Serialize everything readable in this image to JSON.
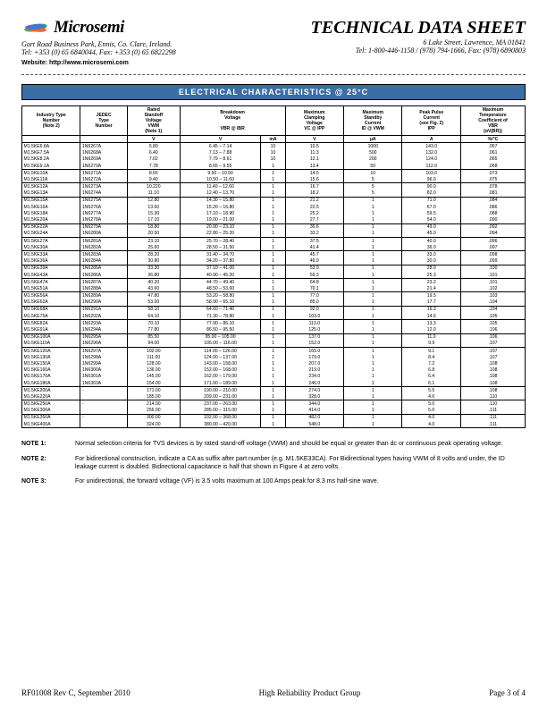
{
  "company": {
    "name": "Microsemi",
    "addr_line1": "Gort Road Business Park, Ennis, Co. Clare, Ireland.",
    "addr_line2": "Tel: +353 (0) 65 6840044, Fax: +353 (0) 65 6822298",
    "website": "Website: http://www.microsemi.com"
  },
  "doc": {
    "title": "TECHNICAL DATA SHEET",
    "addr_line1": "6 Lake Street, Lawrence, MA 01841",
    "addr_line2": "Tel: 1-800-446-1158 / (978) 794-1666, Fax: (978) 6890803",
    "section_bar": "ELECTRICAL CHARACTERISTICS @ 25°C"
  },
  "headers": {
    "c1": "Industry Type\nNumber\n(Note 2)",
    "c2": "JEDEC\nType\nNumber",
    "c3": "Rated\nStandoff\nVoltage\nVWM\n(Note 1)",
    "c4": "Breakdown\nVoltage\n\nVBR  @   IBR",
    "c5": "Maximum\nClamping\nVoltage\nVC @ IPP",
    "c6": "Maximum\nStandby\nCurrent\nID @ VWM",
    "c7": "Peak Pulse\nCurrent\n(see Fig. 2)\nIPP",
    "c8": "Maximum\nTemperature\nCoefficient of\nVBR\n(αV(BR))"
  },
  "units": [
    "",
    "",
    "V",
    "V",
    "mA",
    "V",
    "µA",
    "A",
    "%/°C"
  ],
  "rows": [
    [
      "M1.5KE6.8A",
      "1N6267A",
      "5.80",
      "6.45 – 7.14",
      "10",
      "10.5",
      "1000",
      "143.0",
      ".057",
      0
    ],
    [
      "M1.5KE7.5A",
      "1N6268A",
      "6.40",
      "7.13 – 7.88",
      "10",
      "11.3",
      "500",
      "132.0",
      ".061",
      0
    ],
    [
      "M1.5KE8.2A",
      "1N6269A",
      "7.02",
      "7.79 – 8.61",
      "10",
      "12.1",
      "200",
      "124.0",
      ".065",
      0
    ],
    [
      "M1.5KE9.1A",
      "1N6270A",
      "7.78",
      "8.65 – 9.55",
      "1",
      "13.4",
      "50",
      "112.0",
      ".068",
      0
    ],
    [
      "M1.5KE10A",
      "1N6271A",
      "8.55",
      "9.50 – 10.50",
      "1",
      "14.5",
      "10",
      "103.0",
      ".073",
      1
    ],
    [
      "M1.5KE11A",
      "1N6272A",
      "9.40",
      "10.50 – 11.60",
      "1",
      "15.6",
      "5",
      "96.0",
      ".075",
      0
    ],
    [
      "M1.5KE12A",
      "1N6273A",
      "10.220",
      "11.40 – 12.60",
      "1",
      "16.7",
      "5",
      "90.0",
      ".078",
      1
    ],
    [
      "M1.5KE13A",
      "1N6274A",
      "11.10",
      "12.40 – 13.70",
      "1",
      "18.2",
      "5",
      "82.0",
      ".081",
      0
    ],
    [
      "M1.5KE15A",
      "1N6275A",
      "12.80",
      "14.30 – 15.80",
      "1",
      "21.2",
      "1",
      "71.0",
      ".084",
      1
    ],
    [
      "M1.5KE16A",
      "1N6276A",
      "13.60",
      "15.20 – 16.80",
      "1",
      "22.5",
      "1",
      "67.0",
      ".086",
      0
    ],
    [
      "M1.5KE18A",
      "1N6277A",
      "15.30",
      "17.10 – 18.90",
      "1",
      "25.2",
      "1",
      "59.5",
      ".088",
      0
    ],
    [
      "M1.5KE20A",
      "1N6278A",
      "17.10",
      "19.00 – 21.00",
      "1",
      "27.7",
      "1",
      "54.0",
      ".090",
      0
    ],
    [
      "M1.5KE22A",
      "1N6279A",
      "18.80",
      "20.90 – 23.10",
      "1",
      "30.6",
      "1",
      "49.0",
      ".092",
      1
    ],
    [
      "M1.5KE24A",
      "1N6280A",
      "20.50",
      "22.80 – 25.20",
      "1",
      "33.2",
      "1",
      "45.0",
      ".094",
      0
    ],
    [
      "M1.5KE27A",
      "1N6281A",
      "23.10",
      "25.70 – 28.40",
      "1",
      "37.5",
      "1",
      "40.0",
      ".096",
      1
    ],
    [
      "M1.5KE30A",
      "1N6282A",
      "25.60",
      "28.50 – 31.50",
      "1",
      "41.4",
      "1",
      "36.0",
      ".097",
      0
    ],
    [
      "M1.5KE33A",
      "1N6283A",
      "28.20",
      "31.40 – 34.70",
      "1",
      "45.7",
      "1",
      "33.0",
      ".098",
      1
    ],
    [
      "M1.5KE36A",
      "1N6284A",
      "30.80",
      "34.20 – 37.80",
      "1",
      "49.9",
      "1",
      "30.0",
      ".099",
      0
    ],
    [
      "M1.5KE39A",
      "1N6285A",
      "33.30",
      "37.10 – 41.00",
      "1",
      "53.9",
      "1",
      "28.0",
      ".100",
      1
    ],
    [
      "M1.5KE43A",
      "1N6286A",
      "36.80",
      "40.90 – 45.20",
      "1",
      "59.3",
      "1",
      "25.3",
      ".101",
      0
    ],
    [
      "M1.5KE47A",
      "1N6287A",
      "40.20",
      "44.70 – 49.40",
      "1",
      "64.8",
      "1",
      "23.2",
      ".101",
      1
    ],
    [
      "M1.5KE51A",
      "1N6288A",
      "43.60",
      "48.50 – 53.60",
      "1",
      "70.1",
      "1",
      "21.4",
      ".102",
      0
    ],
    [
      "M1.5KE56A",
      "1N6289A",
      "47.80",
      "53.20 – 58.80",
      "1",
      "77.0",
      "1",
      "19.5",
      ".103",
      1
    ],
    [
      "M1.5KE62A",
      "1N6290A",
      "53.00",
      "58.90 – 65.10",
      "1",
      "85.0",
      "1",
      "17.7",
      ".104",
      0
    ],
    [
      "M1.5KE68A",
      "1N6291A",
      "58.10",
      "64.60 – 71.40",
      "1",
      "92.0",
      "1",
      "16.3",
      ".104",
      1
    ],
    [
      "M1.5KE75A",
      "1N6292A",
      "64.10",
      "71.30 – 78.80",
      "1",
      "103.0",
      "1",
      "14.6",
      ".105",
      0
    ],
    [
      "M1.5KE82A",
      "1N6293A",
      "70.10",
      "77.90 – 86.10",
      "1",
      "113.0",
      "1",
      "13.3",
      ".105",
      1
    ],
    [
      "M1.5KE91A",
      "1N6294A",
      "77.80",
      "86.50 – 95.50",
      "1",
      "125.0",
      "1",
      "12.0",
      ".106",
      0
    ],
    [
      "M1.5KE100A",
      "1N6295A",
      "85.50",
      "95.00 – 105.00",
      "1",
      "137.0",
      "1",
      "11.0",
      ".106",
      1
    ],
    [
      "M1.5KE110A",
      "1N6296A",
      "94.00",
      "105.00 – 116.00",
      "1",
      "152.0",
      "1",
      "9.9",
      ".107",
      0
    ],
    [
      "M1.5KE120A",
      "1N6297A",
      "102.00",
      "114.00 – 126.00",
      "1",
      "165.0",
      "1",
      "9.1",
      ".107",
      1
    ],
    [
      "M1.5KE130A",
      "1N6298A",
      "111.00",
      "124.00 – 137.00",
      "1",
      "179.0",
      "1",
      "8.4",
      ".107",
      0
    ],
    [
      "M1.5KE150A",
      "1N6299A",
      "128.00",
      "143.00 – 158.00",
      "1",
      "207.0",
      "1",
      "7.2",
      ".108",
      0
    ],
    [
      "M1.5KE160A",
      "1N6300A",
      "136.00",
      "152.00 – 168.00",
      "1",
      "219.0",
      "1",
      "6.8",
      ".108",
      0
    ],
    [
      "M1.5KE170A",
      "1N6301A",
      "145.00",
      "162.00 – 179.00",
      "1",
      "234.0",
      "1",
      "6.4",
      ".108",
      0
    ],
    [
      "M1.5KE180A",
      "1N6303A",
      "154.00",
      "171.00 – 189.00",
      "1",
      "246.0",
      "1",
      "6.1",
      ".108",
      0
    ],
    [
      "M1.5KE200A",
      "-",
      "171.00",
      "190.00 – 210.00",
      "1",
      "274.0",
      "1",
      "5.5",
      ".108",
      1
    ],
    [
      "M1.5KE220A",
      "",
      "185.00",
      "209.00 – 231.00",
      "1",
      "328.0",
      "1",
      "4.6",
      ".110",
      0
    ],
    [
      "M1.5KE250A",
      "-",
      "214.00",
      "237.00 – 263.00",
      "1",
      "344.0",
      "1",
      "5.0",
      ".110",
      1
    ],
    [
      "M1.5KE300A",
      "",
      "256.00",
      "285.00 – 315.00",
      "1",
      "414.0",
      "1",
      "5.0",
      ".111",
      0
    ],
    [
      "M1.5KE350A",
      "-",
      "300.00",
      "332.00 – 368.00",
      "1",
      "482.0",
      "1",
      "4.0",
      ".111",
      1
    ],
    [
      "M1.5KE400A",
      "",
      "324.00",
      "380.00 – 420.00",
      "1",
      "548.0",
      "1",
      "4.0",
      ".111",
      0
    ]
  ],
  "notes": {
    "n1_label": "NOTE 1:",
    "n1_text": "Normal selection criteria for TVS devices is by rated stand-off voltage (VWM) and should be equal or greater than dc or continuous peak operating voltage.",
    "n2_label": "NOTE 2:",
    "n2_text": "For bidirectional construction, indicate a CA as suffix after part number (e.g. M1.5KE33CA). For Bidirectional types having VWM of 8 volts and under, the ID leakage current is doubled. Bidirectional capacitance is half that shown in Figure 4 at zero volts.",
    "n3_label": "NOTE 3:",
    "n3_text": "For unidirectional, the forward voltage (VF) is 3.5 volts maximum at 100 Amps peak for 8.3 ms half-sine wave."
  },
  "footer": {
    "left": "RF01008 Rev C, September 2010",
    "center": "High Reliability Product Group",
    "right": "Page 3 of 4"
  }
}
